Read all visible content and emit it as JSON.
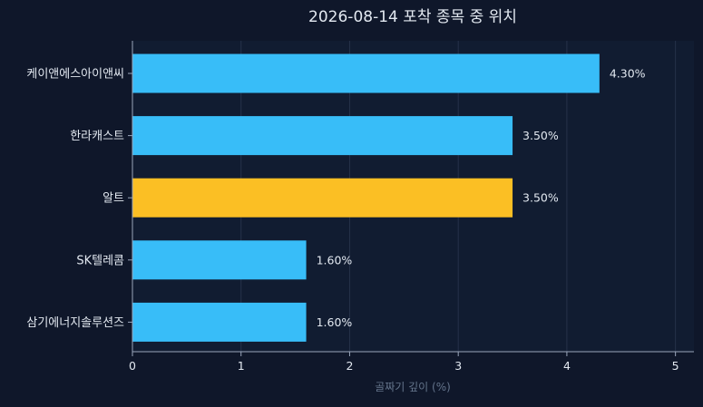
{
  "colors": {
    "background": "#0f172a",
    "plot_background": "#111c31",
    "grid": "#26324a",
    "axis": "#9aa6bb",
    "text": "#e2e8f0",
    "muted_text": "#64748b",
    "bar_default": "#38bdf8",
    "bar_highlight": "#fbbf24"
  },
  "chart_data": {
    "type": "bar",
    "orientation": "horizontal",
    "title": "2026-08-14 포착 종목 중 위치",
    "xlabel": "골짜기 깊이 (%)",
    "ylabel": "",
    "xlim": [
      0,
      5.17
    ],
    "xticks": [
      0,
      1,
      2,
      3,
      4,
      5
    ],
    "grid": "vertical",
    "legend": "none",
    "categories": [
      "케이앤에스아이앤씨",
      "한라캐스트",
      "알트",
      "SK텔레콤",
      "삼기에너지솔루션즈"
    ],
    "values": [
      4.3,
      3.5,
      3.5,
      1.6,
      1.6
    ],
    "value_labels": [
      "4.30%",
      "3.50%",
      "3.50%",
      "1.60%",
      "1.60%"
    ],
    "highlight_category": "알트"
  }
}
